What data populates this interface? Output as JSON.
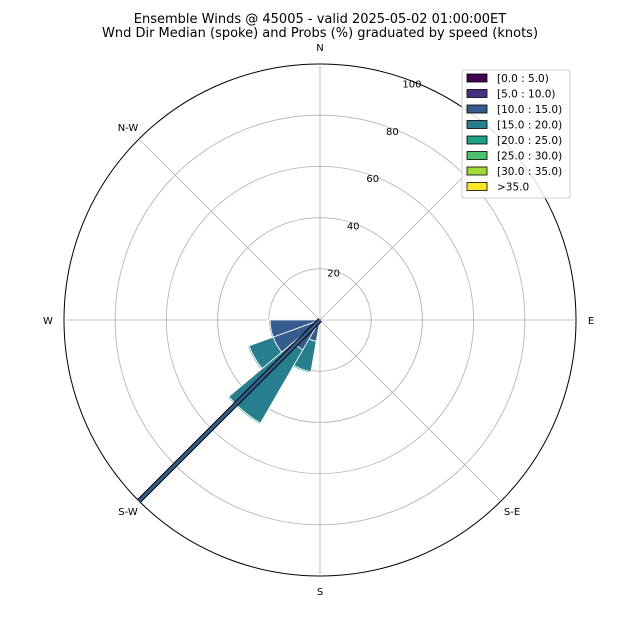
{
  "chart_data": {
    "type": "windrose",
    "title": "Ensemble Winds @ 45005 - valid 2025-05-02 01:00:00ET",
    "subtitle": "Wnd Dir Median (spoke) and Probs (%) graduated by speed (knots)",
    "directions": [
      "N",
      "N-W",
      "W",
      "S-W",
      "S",
      "S-E",
      "E"
    ],
    "r_ticks": [
      20,
      40,
      60,
      80,
      100
    ],
    "r_max": 100,
    "grid": true,
    "legend_position": "top-right",
    "speed_bins": [
      {
        "label": "[0.0 : 5.0)",
        "color": "#440154"
      },
      {
        "label": "[5.0 : 10.0)",
        "color": "#46327e"
      },
      {
        "label": "[10.0 : 15.0)",
        "color": "#365c8d"
      },
      {
        "label": "[15.0 : 20.0)",
        "color": "#277f8e"
      },
      {
        "label": "[20.0 : 25.0)",
        "color": "#1fa187"
      },
      {
        "label": "[25.0 : 30.0)",
        "color": "#4ac16d"
      },
      {
        "label": "[30.0 : 35.0)",
        "color": "#a0da39"
      },
      {
        "label": ">35.0",
        "color": "#fde725"
      }
    ],
    "sectors": [
      {
        "direction_deg": 200,
        "stacks": [
          0.5,
          1.0,
          7.0,
          12.0,
          0.5
        ]
      },
      {
        "direction_deg": 220,
        "stacks": [
          0.5,
          1.0,
          12.0,
          33.0,
          0.5
        ]
      },
      {
        "direction_deg": 240,
        "stacks": [
          0.5,
          1.0,
          18.0,
          10.0,
          0.5
        ]
      },
      {
        "direction_deg": 260,
        "stacks": [
          0.5,
          1.0,
          18.0,
          0.5,
          0.3
        ]
      }
    ],
    "median_spoke": {
      "direction_deg": 225,
      "value": 100
    }
  }
}
